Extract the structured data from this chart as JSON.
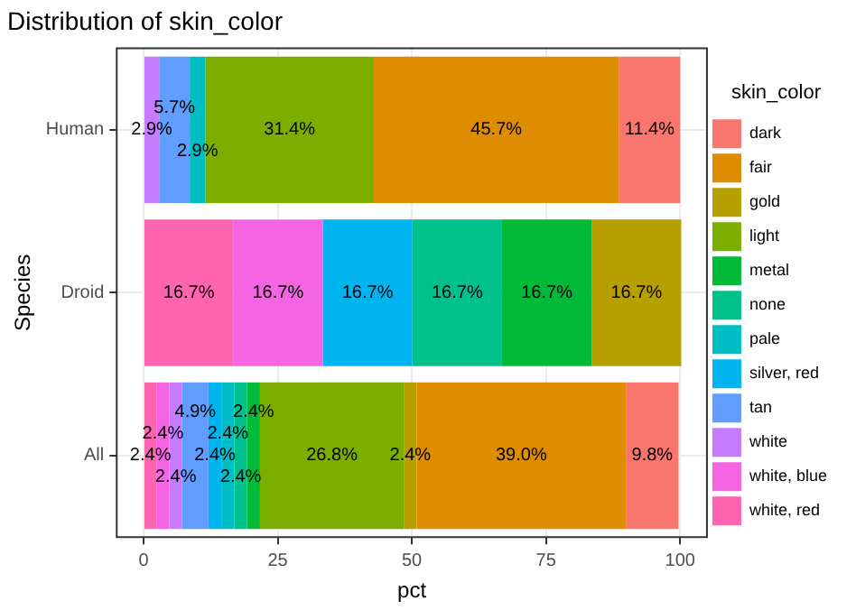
{
  "chart_data": {
    "type": "bar",
    "orientation": "horizontal",
    "stacked": true,
    "title": "Distribution of skin_color",
    "xlabel": "pct",
    "ylabel": "Species",
    "legend_title": "skin_color",
    "legend": "right",
    "grid": true,
    "categories": [
      "Human",
      "Droid",
      "All"
    ],
    "xlim": [
      -5,
      105
    ],
    "xticks": [
      0,
      25,
      50,
      75,
      100
    ],
    "series": [
      {
        "name": "white, red",
        "color": "#ff64b0",
        "values": [
          null,
          16.7,
          2.4
        ],
        "value_labels": [
          null,
          "16.7%",
          "2.4%"
        ]
      },
      {
        "name": "white, blue",
        "color": "#f564e3",
        "values": [
          null,
          16.7,
          2.4
        ],
        "value_labels": [
          null,
          "16.7%",
          "2.4%"
        ]
      },
      {
        "name": "white",
        "color": "#c77cff",
        "values": [
          2.9,
          null,
          2.4
        ],
        "value_labels": [
          "2.9%",
          null,
          "2.4%"
        ]
      },
      {
        "name": "tan",
        "color": "#619cff",
        "values": [
          5.7,
          null,
          4.9
        ],
        "value_labels": [
          "5.7%",
          null,
          "4.9%"
        ]
      },
      {
        "name": "silver, red",
        "color": "#00b4f0",
        "values": [
          null,
          16.7,
          2.4
        ],
        "value_labels": [
          null,
          "16.7%",
          "2.4%"
        ]
      },
      {
        "name": "pale",
        "color": "#00bfc4",
        "values": [
          2.9,
          null,
          2.4
        ],
        "value_labels": [
          "2.9%",
          null,
          "2.4%"
        ]
      },
      {
        "name": "none",
        "color": "#00c08b",
        "values": [
          null,
          16.7,
          2.4
        ],
        "value_labels": [
          null,
          "16.7%",
          "2.4%"
        ]
      },
      {
        "name": "metal",
        "color": "#00ba38",
        "values": [
          null,
          16.7,
          2.4
        ],
        "value_labels": [
          null,
          "16.7%",
          "2.4%"
        ]
      },
      {
        "name": "light",
        "color": "#7cae00",
        "values": [
          31.4,
          null,
          26.8
        ],
        "value_labels": [
          "31.4%",
          null,
          "26.8%"
        ]
      },
      {
        "name": "gold",
        "color": "#b79f00",
        "values": [
          null,
          16.7,
          2.4
        ],
        "value_labels": [
          null,
          "16.7%",
          "2.4%"
        ]
      },
      {
        "name": "fair",
        "color": "#de8c00",
        "values": [
          45.7,
          null,
          39.0
        ],
        "value_labels": [
          "45.7%",
          null,
          "39.0%"
        ]
      },
      {
        "name": "dark",
        "color": "#f8766d",
        "values": [
          11.4,
          null,
          9.8
        ],
        "value_labels": [
          "11.4%",
          null,
          "9.8%"
        ]
      }
    ]
  }
}
